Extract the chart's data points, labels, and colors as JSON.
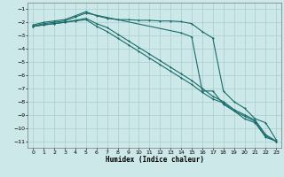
{
  "xlabel": "Humidex (Indice chaleur)",
  "background_color": "#cde8e8",
  "grid_color": "#aacece",
  "line_color": "#1a6b6b",
  "xlim": [
    -0.5,
    23.5
  ],
  "ylim": [
    -11.5,
    -0.5
  ],
  "yticks": [
    -1,
    -2,
    -3,
    -4,
    -5,
    -6,
    -7,
    -8,
    -9,
    -10,
    -11
  ],
  "xticks": [
    0,
    1,
    2,
    3,
    4,
    5,
    6,
    7,
    8,
    9,
    10,
    11,
    12,
    13,
    14,
    15,
    16,
    17,
    18,
    19,
    20,
    21,
    22,
    23
  ],
  "series1_x": [
    0,
    1,
    2,
    3,
    4,
    5,
    6,
    7,
    8,
    9,
    10,
    11,
    12,
    13,
    14,
    15,
    16,
    17,
    18,
    19,
    20,
    21,
    22,
    23
  ],
  "series1_y": [
    -2.2,
    -2.0,
    -1.9,
    -1.8,
    -1.5,
    -1.2,
    -1.5,
    -1.7,
    -1.8,
    -1.8,
    -1.85,
    -1.85,
    -1.9,
    -1.9,
    -1.95,
    -2.1,
    -2.7,
    -3.2,
    -7.2,
    -8.0,
    -8.5,
    -9.3,
    -9.6,
    -10.9
  ],
  "series2_x": [
    0,
    1,
    2,
    3,
    4,
    5,
    6,
    7,
    8,
    9,
    10,
    11,
    12,
    13,
    14,
    15,
    16,
    17,
    18,
    19,
    20,
    21,
    22,
    23
  ],
  "series2_y": [
    -2.3,
    -2.2,
    -2.1,
    -2.0,
    -1.9,
    -1.8,
    -2.3,
    -2.7,
    -3.2,
    -3.7,
    -4.2,
    -4.7,
    -5.2,
    -5.7,
    -6.2,
    -6.7,
    -7.3,
    -7.8,
    -8.1,
    -8.7,
    -9.1,
    -9.5,
    -10.6,
    -11.0
  ],
  "series3_x": [
    0,
    1,
    2,
    3,
    4,
    5,
    6,
    7,
    8,
    9,
    10,
    11,
    12,
    13,
    14,
    15,
    16,
    17,
    18,
    19,
    20,
    21,
    22,
    23
  ],
  "series3_y": [
    -2.3,
    -2.2,
    -2.1,
    -2.0,
    -1.85,
    -1.7,
    -2.1,
    -2.4,
    -2.9,
    -3.4,
    -3.9,
    -4.4,
    -4.9,
    -5.4,
    -5.9,
    -6.4,
    -7.0,
    -7.6,
    -8.0,
    -8.6,
    -9.0,
    -9.4,
    -10.5,
    -11.0
  ],
  "series4_x": [
    0,
    1,
    2,
    3,
    4,
    5,
    14,
    15,
    16,
    17,
    18,
    19,
    20,
    21,
    22,
    23
  ],
  "series4_y": [
    -2.3,
    -2.1,
    -2.0,
    -1.9,
    -1.6,
    -1.3,
    -2.8,
    -3.1,
    -7.2,
    -7.2,
    -8.2,
    -8.7,
    -9.3,
    -9.6,
    -10.7,
    -11.0
  ]
}
